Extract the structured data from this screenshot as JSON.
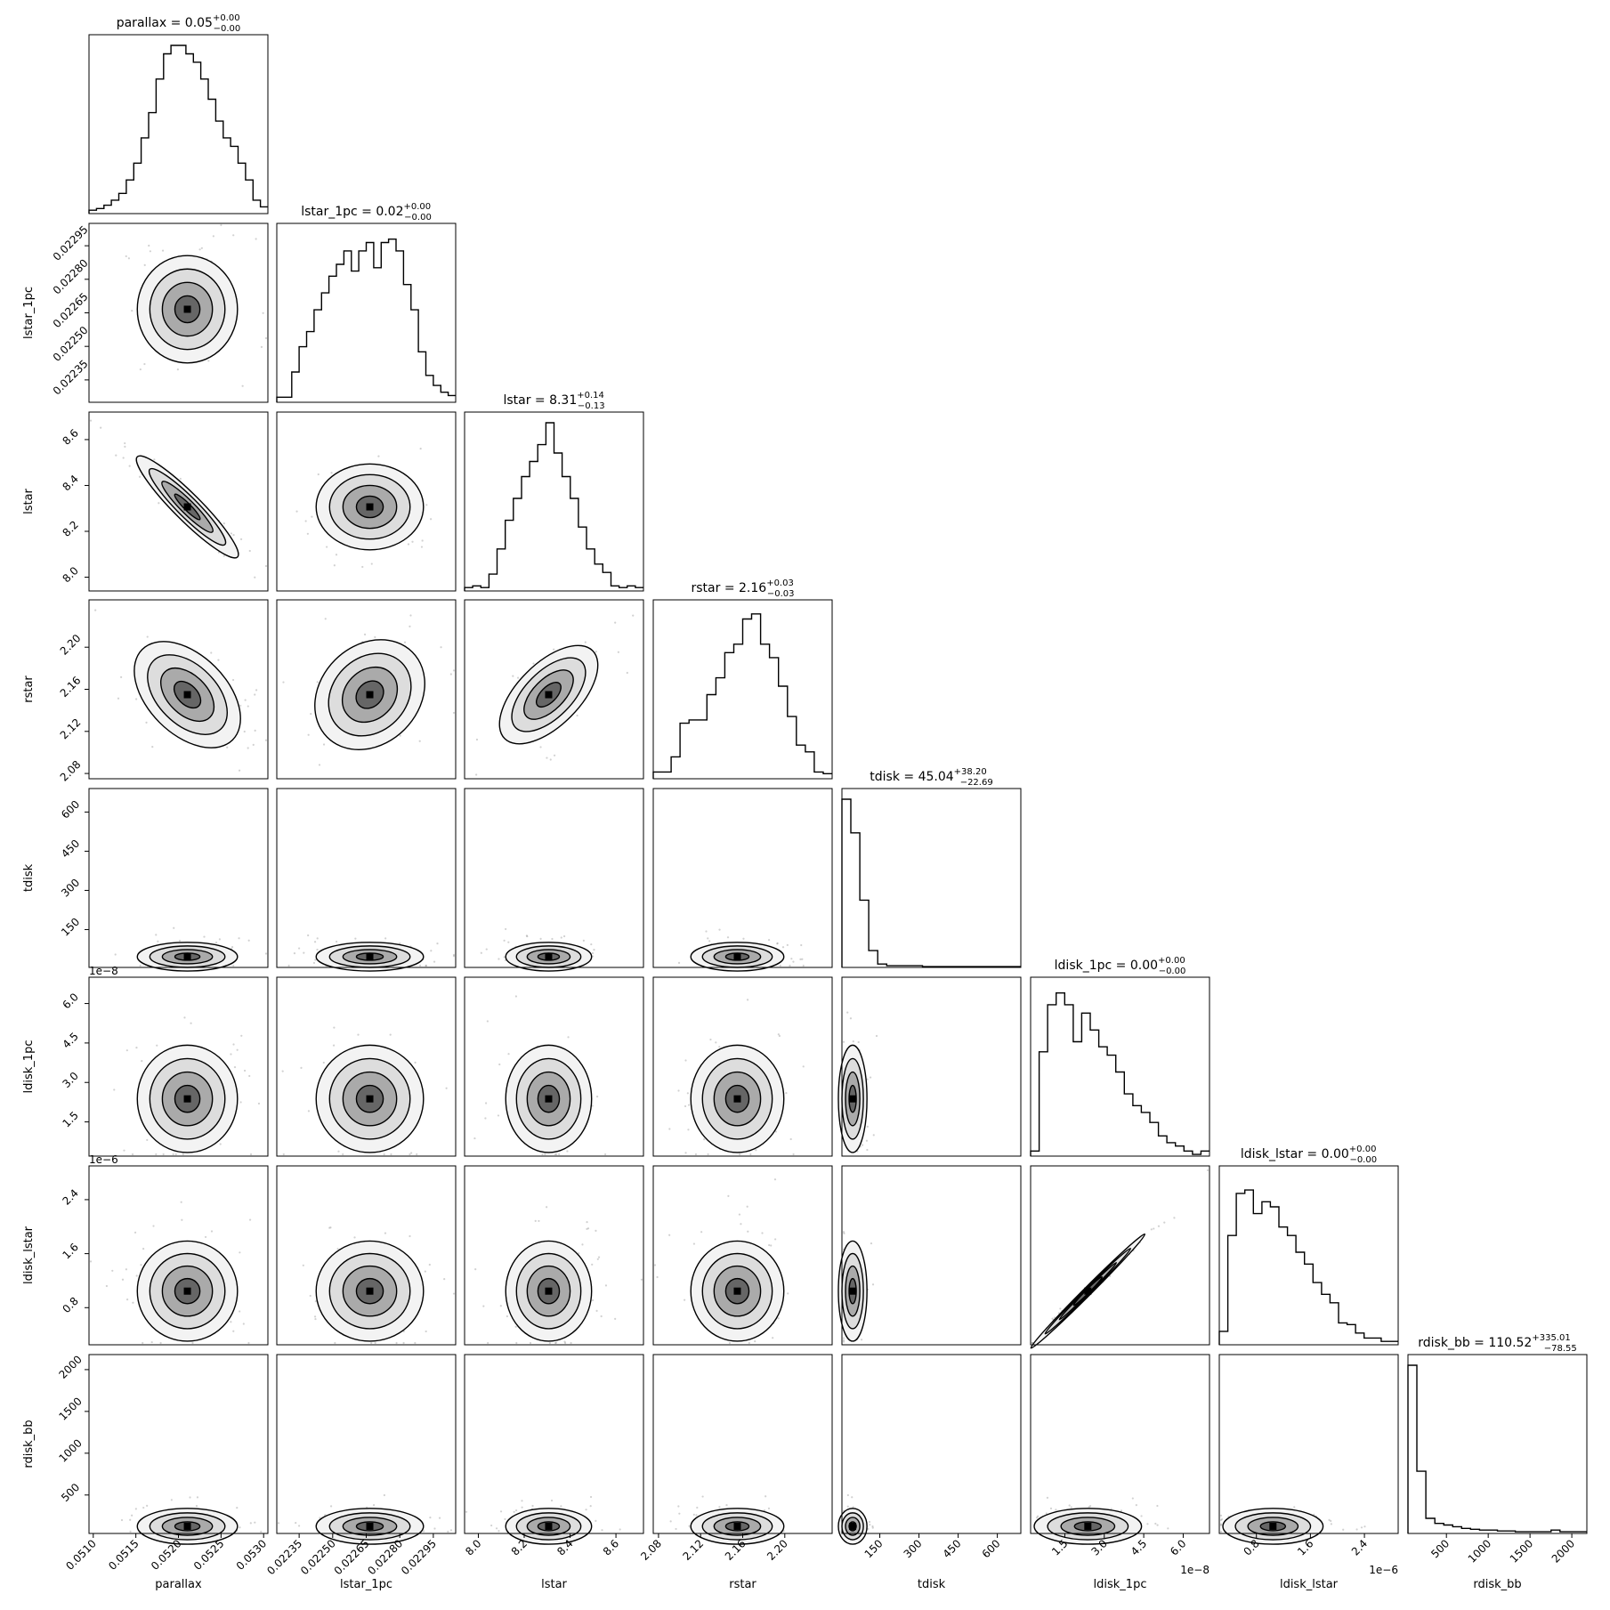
{
  "chart_data": {
    "type": "corner",
    "params": [
      {
        "name": "parallax",
        "range": [
          0.05095,
          0.05305
        ],
        "ticks": [
          0.051,
          0.0515,
          0.052,
          0.0525,
          0.053
        ],
        "tick_labels": [
          "0.0510",
          "0.0515",
          "0.0520",
          "0.0525",
          "0.0530"
        ],
        "title": {
          "base": "parallax = 0.05",
          "sup": "+0.00",
          "sub": "−0.00"
        }
      },
      {
        "name": "lstar_1pc",
        "range": [
          0.02225,
          0.02305
        ],
        "ticks": [
          0.02235,
          0.0225,
          0.02265,
          0.0228,
          0.02295
        ],
        "tick_labels": [
          "0.02235",
          "0.02250",
          "0.02265",
          "0.02280",
          "0.02295"
        ],
        "title": {
          "base": "lstar_1pc = 0.02",
          "sup": "+0.00",
          "sub": "−0.00"
        }
      },
      {
        "name": "lstar",
        "range": [
          7.94,
          8.72
        ],
        "ticks": [
          8.0,
          8.2,
          8.4,
          8.6
        ],
        "tick_labels": [
          "8.0",
          "8.2",
          "8.4",
          "8.6"
        ],
        "title": {
          "base": "lstar = 8.31",
          "sup": "+0.14",
          "sub": "−0.13"
        }
      },
      {
        "name": "rstar",
        "range": [
          2.075,
          2.245
        ],
        "ticks": [
          2.08,
          2.12,
          2.16,
          2.2
        ],
        "tick_labels": [
          "2.08",
          "2.12",
          "2.16",
          "2.20"
        ],
        "title": {
          "base": "rstar = 2.16",
          "sup": "+0.03",
          "sub": "−0.03"
        }
      },
      {
        "name": "tdisk",
        "range": [
          5,
          690
        ],
        "ticks": [
          150,
          300,
          450,
          600
        ],
        "tick_labels": [
          "150",
          "300",
          "450",
          "600"
        ],
        "title": {
          "base": "tdisk = 45.04",
          "sup": "+38.20",
          "sub": "−22.69"
        }
      },
      {
        "name": "ldisk_1pc",
        "range": [
          2e-09,
          7e-08
        ],
        "ticks": [
          1.5e-08,
          3e-08,
          4.5e-08,
          6e-08
        ],
        "tick_labels": [
          "1.5",
          "3.0",
          "4.5",
          "6.0"
        ],
        "offset": "1e−8",
        "title": {
          "base": "ldisk_1pc = 0.00",
          "sup": "+0.00",
          "sub": "−0.00"
        }
      },
      {
        "name": "ldisk_lstar",
        "range": [
          2.5e-07,
          2.9e-06
        ],
        "ticks": [
          8e-07,
          1.6e-06,
          2.4e-06
        ],
        "tick_labels": [
          "0.8",
          "1.6",
          "2.4"
        ],
        "offset": "1e−6",
        "title": {
          "base": "ldisk_lstar = 0.00",
          "sup": "+0.00",
          "sub": "−0.00"
        }
      },
      {
        "name": "rdisk_bb",
        "range": [
          40,
          2180
        ],
        "ticks": [
          500,
          1000,
          1500,
          2000
        ],
        "tick_labels": [
          "500",
          "1000",
          "1500",
          "2000"
        ],
        "title": {
          "base": "rdisk_bb = 110.52",
          "sup": "+335.01",
          "sub": "−78.55"
        }
      }
    ],
    "marginals": [
      [
        0.02,
        0.03,
        0.05,
        0.08,
        0.12,
        0.2,
        0.3,
        0.45,
        0.6,
        0.8,
        0.95,
        1.0,
        1.0,
        0.95,
        0.9,
        0.8,
        0.68,
        0.55,
        0.45,
        0.4,
        0.3,
        0.2,
        0.08,
        0.04
      ],
      [
        0.03,
        0.03,
        0.18,
        0.33,
        0.42,
        0.55,
        0.65,
        0.75,
        0.82,
        0.9,
        0.78,
        0.9,
        0.95,
        0.8,
        0.95,
        0.97,
        0.9,
        0.7,
        0.55,
        0.3,
        0.16,
        0.1,
        0.06,
        0.04
      ],
      [
        0.02,
        0.03,
        0.02,
        0.1,
        0.25,
        0.42,
        0.55,
        0.68,
        0.77,
        0.87,
        1.0,
        0.82,
        0.68,
        0.55,
        0.38,
        0.25,
        0.16,
        0.11,
        0.03,
        0.02,
        0.03,
        0.02
      ],
      [
        0.04,
        0.04,
        0.13,
        0.33,
        0.35,
        0.35,
        0.5,
        0.6,
        0.75,
        0.8,
        0.95,
        0.98,
        0.8,
        0.72,
        0.55,
        0.37,
        0.2,
        0.16,
        0.04,
        0.03
      ],
      [
        1.0,
        0.8,
        0.4,
        0.1,
        0.02,
        0.01,
        0.01,
        0.01,
        0.01,
        0.005,
        0.005,
        0.005,
        0.005,
        0.005,
        0.005,
        0.005,
        0.005,
        0.005,
        0.005,
        0.005
      ],
      [
        0.03,
        0.62,
        0.9,
        0.97,
        0.9,
        0.68,
        0.85,
        0.75,
        0.65,
        0.6,
        0.5,
        0.37,
        0.3,
        0.26,
        0.2,
        0.12,
        0.08,
        0.06,
        0.03,
        0.01,
        0.03
      ],
      [
        0.08,
        0.65,
        0.9,
        0.92,
        0.78,
        0.85,
        0.82,
        0.7,
        0.65,
        0.55,
        0.48,
        0.37,
        0.3,
        0.25,
        0.13,
        0.12,
        0.07,
        0.04,
        0.04,
        0.02,
        0.02
      ],
      [
        1.0,
        0.37,
        0.09,
        0.06,
        0.05,
        0.04,
        0.03,
        0.025,
        0.02,
        0.02,
        0.015,
        0.015,
        0.01,
        0.01,
        0.01,
        0.01,
        0.02,
        0.01,
        0.01,
        0.01
      ]
    ]
  }
}
